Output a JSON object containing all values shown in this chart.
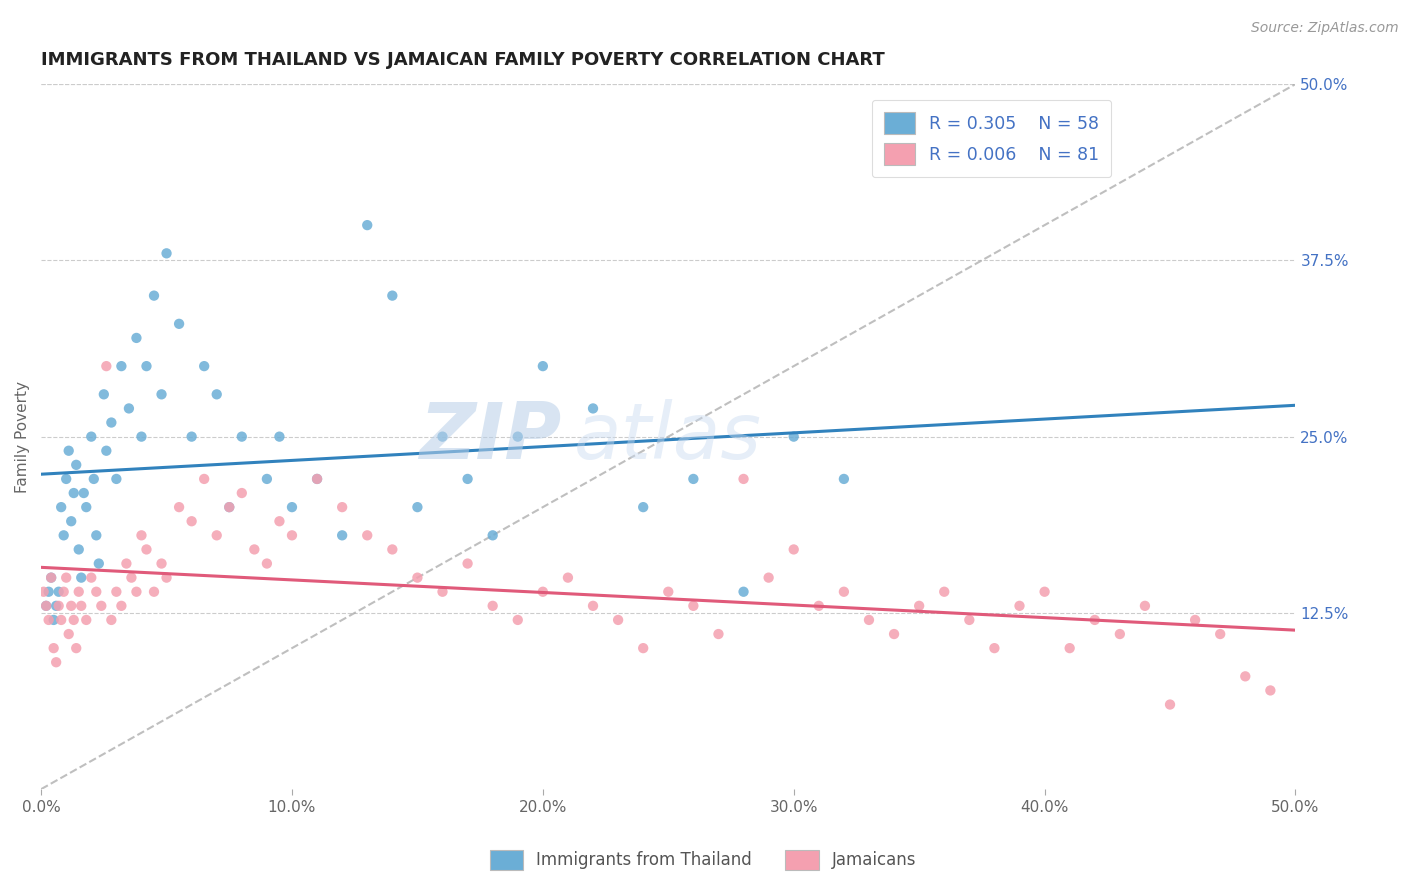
{
  "title": "IMMIGRANTS FROM THAILAND VS JAMAICAN FAMILY POVERTY CORRELATION CHART",
  "source": "Source: ZipAtlas.com",
  "ylabel": "Family Poverty",
  "xlim": [
    0,
    0.5
  ],
  "ylim": [
    0,
    0.5
  ],
  "yticks": [
    0.125,
    0.25,
    0.375,
    0.5
  ],
  "ytick_labels": [
    "12.5%",
    "25.0%",
    "37.5%",
    "50.0%"
  ],
  "legend_r1": "R = 0.305",
  "legend_n1": "N = 58",
  "legend_r2": "R = 0.006",
  "legend_n2": "N = 81",
  "color_thailand": "#6baed6",
  "color_jamaica": "#f4a0b0",
  "color_trend_thailand": "#3182bd",
  "color_trend_jamaica": "#e05a7a",
  "color_ref_line": "#aaaaaa",
  "color_grid": "#cccccc",
  "color_axis_text": "#4472C4",
  "watermark_zip": "ZIP",
  "watermark_atlas": "atlas",
  "background_color": "#ffffff",
  "title_fontsize": 13,
  "label_fontsize": 11,
  "tick_fontsize": 11,
  "thailand_x": [
    0.002,
    0.003,
    0.004,
    0.005,
    0.006,
    0.007,
    0.008,
    0.009,
    0.01,
    0.011,
    0.012,
    0.013,
    0.014,
    0.015,
    0.016,
    0.017,
    0.018,
    0.02,
    0.021,
    0.022,
    0.023,
    0.025,
    0.026,
    0.028,
    0.03,
    0.032,
    0.035,
    0.038,
    0.04,
    0.042,
    0.045,
    0.048,
    0.05,
    0.055,
    0.06,
    0.065,
    0.07,
    0.075,
    0.08,
    0.09,
    0.095,
    0.1,
    0.11,
    0.12,
    0.13,
    0.14,
    0.15,
    0.16,
    0.17,
    0.18,
    0.19,
    0.2,
    0.22,
    0.24,
    0.26,
    0.28,
    0.3,
    0.32
  ],
  "thailand_y": [
    0.13,
    0.14,
    0.15,
    0.12,
    0.13,
    0.14,
    0.2,
    0.18,
    0.22,
    0.24,
    0.19,
    0.21,
    0.23,
    0.17,
    0.15,
    0.21,
    0.2,
    0.25,
    0.22,
    0.18,
    0.16,
    0.28,
    0.24,
    0.26,
    0.22,
    0.3,
    0.27,
    0.32,
    0.25,
    0.3,
    0.35,
    0.28,
    0.38,
    0.33,
    0.25,
    0.3,
    0.28,
    0.2,
    0.25,
    0.22,
    0.25,
    0.2,
    0.22,
    0.18,
    0.4,
    0.35,
    0.2,
    0.25,
    0.22,
    0.18,
    0.25,
    0.3,
    0.27,
    0.2,
    0.22,
    0.14,
    0.25,
    0.22
  ],
  "jamaica_x": [
    0.001,
    0.002,
    0.003,
    0.004,
    0.005,
    0.006,
    0.007,
    0.008,
    0.009,
    0.01,
    0.011,
    0.012,
    0.013,
    0.014,
    0.015,
    0.016,
    0.018,
    0.02,
    0.022,
    0.024,
    0.026,
    0.028,
    0.03,
    0.032,
    0.034,
    0.036,
    0.038,
    0.04,
    0.042,
    0.045,
    0.048,
    0.05,
    0.055,
    0.06,
    0.065,
    0.07,
    0.075,
    0.08,
    0.085,
    0.09,
    0.095,
    0.1,
    0.11,
    0.12,
    0.13,
    0.14,
    0.15,
    0.16,
    0.17,
    0.18,
    0.19,
    0.2,
    0.21,
    0.22,
    0.23,
    0.24,
    0.25,
    0.26,
    0.27,
    0.28,
    0.29,
    0.3,
    0.31,
    0.32,
    0.33,
    0.34,
    0.35,
    0.36,
    0.37,
    0.38,
    0.39,
    0.4,
    0.41,
    0.42,
    0.43,
    0.44,
    0.45,
    0.46,
    0.47,
    0.48,
    0.49
  ],
  "jamaica_y": [
    0.14,
    0.13,
    0.12,
    0.15,
    0.1,
    0.09,
    0.13,
    0.12,
    0.14,
    0.15,
    0.11,
    0.13,
    0.12,
    0.1,
    0.14,
    0.13,
    0.12,
    0.15,
    0.14,
    0.13,
    0.3,
    0.12,
    0.14,
    0.13,
    0.16,
    0.15,
    0.14,
    0.18,
    0.17,
    0.14,
    0.16,
    0.15,
    0.2,
    0.19,
    0.22,
    0.18,
    0.2,
    0.21,
    0.17,
    0.16,
    0.19,
    0.18,
    0.22,
    0.2,
    0.18,
    0.17,
    0.15,
    0.14,
    0.16,
    0.13,
    0.12,
    0.14,
    0.15,
    0.13,
    0.12,
    0.1,
    0.14,
    0.13,
    0.11,
    0.22,
    0.15,
    0.17,
    0.13,
    0.14,
    0.12,
    0.11,
    0.13,
    0.14,
    0.12,
    0.1,
    0.13,
    0.14,
    0.1,
    0.12,
    0.11,
    0.13,
    0.06,
    0.12,
    0.11,
    0.08,
    0.07
  ]
}
